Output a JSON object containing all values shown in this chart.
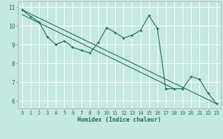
{
  "title": "",
  "xlabel": "Humidex (Indice chaleur)",
  "background_color": "#c5e8e0",
  "grid_color": "#ffffff",
  "line_color": "#1a6b60",
  "xlim": [
    -0.5,
    23.5
  ],
  "ylim": [
    5.6,
    11.3
  ],
  "xticks": [
    0,
    1,
    2,
    3,
    4,
    5,
    6,
    7,
    8,
    9,
    10,
    11,
    12,
    13,
    14,
    15,
    16,
    17,
    18,
    19,
    20,
    21,
    22,
    23
  ],
  "yticks": [
    6,
    7,
    8,
    9,
    10,
    11
  ],
  "line1_x": [
    0,
    1,
    2,
    3,
    4,
    5,
    6,
    7,
    8,
    9,
    10,
    11,
    12,
    13,
    14,
    15,
    16,
    17,
    18,
    19,
    20,
    21,
    22,
    23
  ],
  "line1_y": [
    10.85,
    10.5,
    10.2,
    9.4,
    9.0,
    9.2,
    8.85,
    8.7,
    8.55,
    9.1,
    9.9,
    9.65,
    9.35,
    9.5,
    9.75,
    10.55,
    9.85,
    6.65,
    6.65,
    6.65,
    7.3,
    7.15,
    6.4,
    5.85
  ],
  "line3_x": [
    0,
    23
  ],
  "line3_y": [
    10.85,
    5.85
  ],
  "line4_x": [
    0,
    18
  ],
  "line4_y": [
    10.6,
    6.65
  ]
}
